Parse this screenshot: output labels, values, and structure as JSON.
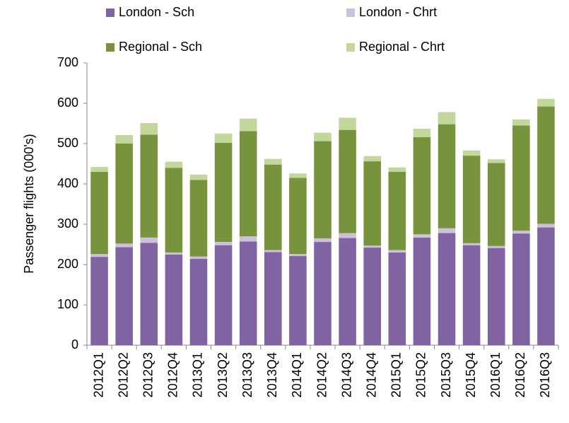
{
  "chart_data": {
    "type": "stacked_bar",
    "y_label": "Passenger flights (000's)",
    "categories": [
      "2012Q1",
      "2012Q2",
      "2012Q3",
      "2012Q4",
      "2013Q1",
      "2013Q2",
      "2013Q3",
      "2013Q4",
      "2014Q1",
      "2014Q2",
      "2014Q3",
      "2014Q4",
      "2015Q1",
      "2015Q2",
      "2015Q3",
      "2015Q4",
      "2016Q1",
      "2016Q2",
      "2016Q3"
    ],
    "series": [
      {
        "name": "London - Sch",
        "color": "#8064a2",
        "values": [
          219,
          243,
          254,
          225,
          214,
          248,
          257,
          231,
          221,
          256,
          266,
          242,
          230,
          267,
          278,
          248,
          241,
          277,
          292
        ]
      },
      {
        "name": "London - Chrt",
        "color": "#ccc1da",
        "values": [
          7,
          9,
          13,
          5,
          6,
          8,
          13,
          5,
          5,
          9,
          12,
          5,
          6,
          8,
          12,
          5,
          5,
          7,
          9
        ]
      },
      {
        "name": "Regional - Sch",
        "color": "#77933c",
        "values": [
          204,
          248,
          255,
          210,
          190,
          246,
          261,
          212,
          189,
          241,
          256,
          209,
          194,
          241,
          258,
          217,
          206,
          261,
          291
        ]
      },
      {
        "name": "Regional - Chrt",
        "color": "#c3d69b",
        "values": [
          12,
          21,
          29,
          15,
          13,
          23,
          31,
          14,
          11,
          21,
          30,
          13,
          11,
          21,
          30,
          13,
          9,
          15,
          19
        ]
      }
    ],
    "ylim": [
      0,
      700
    ],
    "yticks": [
      0,
      100,
      200,
      300,
      400,
      500,
      600,
      700
    ]
  }
}
